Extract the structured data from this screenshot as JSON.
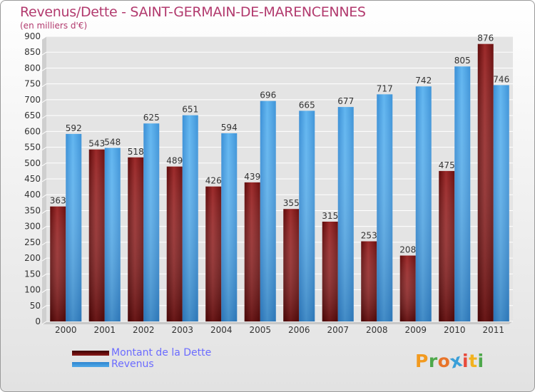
{
  "header": {
    "title": "Revenus/Dette - SAINT-GERMAIN-DE-MARENCENNES",
    "subtitle": "(en milliers d'€)"
  },
  "colors": {
    "debt": "#8b1a1a",
    "revenue": "#4fa8e8",
    "title": "#b23a6e",
    "legend_text": "#6b6bff"
  },
  "legend": {
    "debt_label": "Montant de la Dette",
    "revenue_label": "Revenus"
  },
  "logo": {
    "letters": [
      "P",
      "r",
      "o",
      "x",
      "i",
      "t",
      "i"
    ],
    "colors": [
      "#f29a1f",
      "#4ea84b",
      "#e8742a",
      "#3a9fd8",
      "#e84b3c",
      "#f2b21f",
      "#4ea84b"
    ]
  },
  "chart_data": {
    "type": "bar",
    "categories": [
      "2000",
      "2001",
      "2002",
      "2003",
      "2004",
      "2005",
      "2006",
      "2007",
      "2008",
      "2009",
      "2010",
      "2011"
    ],
    "series": [
      {
        "name": "Montant de la Dette",
        "values": [
          363,
          543,
          518,
          489,
          426,
          439,
          355,
          315,
          253,
          208,
          475,
          876
        ]
      },
      {
        "name": "Revenus",
        "values": [
          592,
          548,
          625,
          651,
          594,
          696,
          665,
          677,
          717,
          742,
          805,
          746
        ]
      }
    ],
    "ylim": [
      0,
      900
    ],
    "yticks": [
      0,
      50,
      100,
      150,
      200,
      250,
      300,
      350,
      400,
      450,
      500,
      550,
      600,
      650,
      700,
      750,
      800,
      850,
      900
    ],
    "grid": true,
    "legend_position": "bottom-left"
  }
}
